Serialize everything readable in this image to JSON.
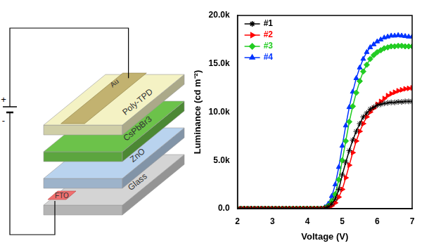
{
  "chart_data": {
    "type": "line",
    "x_label": "Voltage (V)",
    "y_label": "Luminance (cd m⁻²)",
    "x": [
      2,
      2.1,
      2.2,
      2.3,
      2.4,
      2.5,
      2.6,
      2.7,
      2.8,
      2.9,
      3,
      3.1,
      3.2,
      3.3,
      3.4,
      3.5,
      3.6,
      3.7,
      3.8,
      3.9,
      4,
      4.1,
      4.2,
      4.3,
      4.4,
      4.5,
      4.6,
      4.7,
      4.8,
      4.9,
      5,
      5.1,
      5.2,
      5.3,
      5.4,
      5.5,
      5.6,
      5.7,
      5.8,
      5.9,
      6,
      6.1,
      6.2,
      6.3,
      6.4,
      6.5,
      6.6,
      6.7,
      6.8,
      6.9,
      7
    ],
    "series": [
      {
        "name": "#1",
        "color": "#000000",
        "marker": "star",
        "values": [
          0,
          0,
          0,
          0,
          0,
          0,
          0,
          0,
          0,
          0,
          0,
          0,
          0,
          0,
          0,
          0,
          0,
          0,
          0,
          0,
          0,
          0,
          0,
          0,
          0,
          50,
          200,
          500,
          1000,
          2000,
          3500,
          4800,
          6000,
          7100,
          8000,
          8800,
          9500,
          9900,
          10300,
          10500,
          10700,
          10800,
          10900,
          10950,
          11000,
          11000,
          11050,
          11050,
          11100,
          11100,
          11100
        ]
      },
      {
        "name": "#2",
        "color": "#ff0000",
        "marker": "triangle-right",
        "values": [
          0,
          0,
          0,
          0,
          0,
          0,
          0,
          0,
          0,
          0,
          0,
          0,
          0,
          0,
          0,
          0,
          0,
          0,
          0,
          0,
          0,
          0,
          0,
          0,
          0,
          20,
          100,
          300,
          600,
          1200,
          2000,
          3200,
          4500,
          5800,
          7000,
          8000,
          8800,
          9500,
          10000,
          10400,
          10800,
          11100,
          11400,
          11700,
          11900,
          12050,
          12200,
          12300,
          12400,
          12450,
          12500
        ]
      },
      {
        "name": "#3",
        "color": "#22cc22",
        "marker": "diamond",
        "values": [
          0,
          0,
          0,
          0,
          0,
          0,
          0,
          0,
          0,
          0,
          0,
          0,
          0,
          0,
          0,
          0,
          0,
          0,
          0,
          0,
          0,
          0,
          0,
          0,
          0,
          80,
          300,
          800,
          1500,
          3000,
          5000,
          7000,
          9000,
          10600,
          12000,
          13200,
          14200,
          14900,
          15500,
          15900,
          16200,
          16400,
          16600,
          16700,
          16800,
          16800,
          16850,
          16850,
          16800,
          16800,
          16800
        ]
      },
      {
        "name": "#4",
        "color": "#0033ff",
        "marker": "triangle",
        "values": [
          0,
          0,
          0,
          0,
          0,
          0,
          0,
          0,
          0,
          0,
          0,
          0,
          0,
          0,
          0,
          0,
          0,
          0,
          0,
          0,
          0,
          0,
          0,
          0,
          0,
          150,
          500,
          1300,
          2500,
          4300,
          6500,
          8600,
          10500,
          12100,
          13500,
          14600,
          15500,
          16200,
          16700,
          17000,
          17300,
          17500,
          17700,
          17800,
          17900,
          17900,
          17950,
          17900,
          17850,
          17800,
          17800
        ]
      }
    ],
    "xlim": [
      2,
      7
    ],
    "xticks": [
      2,
      3,
      4,
      5,
      6,
      7
    ],
    "ylim": [
      0,
      20000
    ],
    "yticks": [
      {
        "value": 0,
        "label": "0.0"
      },
      {
        "value": 5000,
        "label": "5.0k"
      },
      {
        "value": 10000,
        "label": "10.0k"
      },
      {
        "value": 15000,
        "label": "15.0k"
      },
      {
        "value": 20000,
        "label": "20.0k"
      }
    ],
    "grid": false,
    "legend": "top-left"
  },
  "diagram": {
    "layers": [
      {
        "label": "Glass",
        "color": "#d4d4d4"
      },
      {
        "label": "ZnO",
        "color": "#b9d3ee"
      },
      {
        "label": "CsPbBr3",
        "color": "#6cc24a"
      },
      {
        "label": "Poly-TPD",
        "color": "#f4f2c4"
      }
    ],
    "top_electrode": {
      "label": "Au",
      "color": "#c2b270"
    },
    "bottom_electrode": {
      "label": "FTO",
      "color": "#f07070"
    },
    "battery": {
      "positive": "+",
      "negative": "-"
    }
  }
}
